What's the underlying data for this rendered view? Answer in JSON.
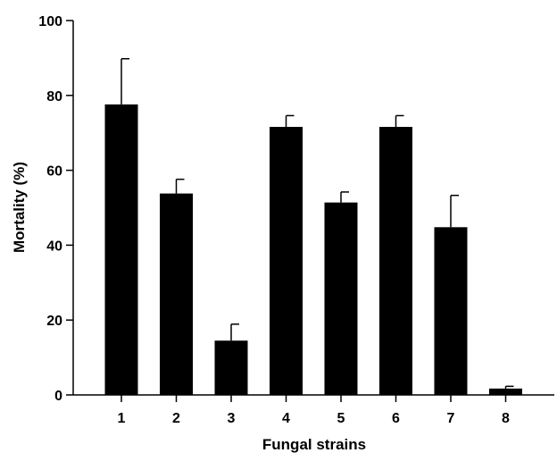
{
  "chart_data": {
    "type": "bar",
    "title": "",
    "xlabel": "Fungal strains",
    "ylabel": "Mortality (%)",
    "categories": [
      "1",
      "2",
      "3",
      "4",
      "5",
      "6",
      "7",
      "8"
    ],
    "values": [
      77.6,
      53.8,
      14.5,
      71.6,
      51.4,
      71.6,
      44.8,
      1.7
    ],
    "errors": [
      12.2,
      3.8,
      4.4,
      3.0,
      2.8,
      3.0,
      8.5,
      0.6
    ],
    "ylim": [
      0,
      100
    ],
    "yticks": [
      0,
      20,
      40,
      60,
      80,
      100
    ],
    "bar_color": "#000000",
    "grid": false,
    "legend": "none"
  }
}
